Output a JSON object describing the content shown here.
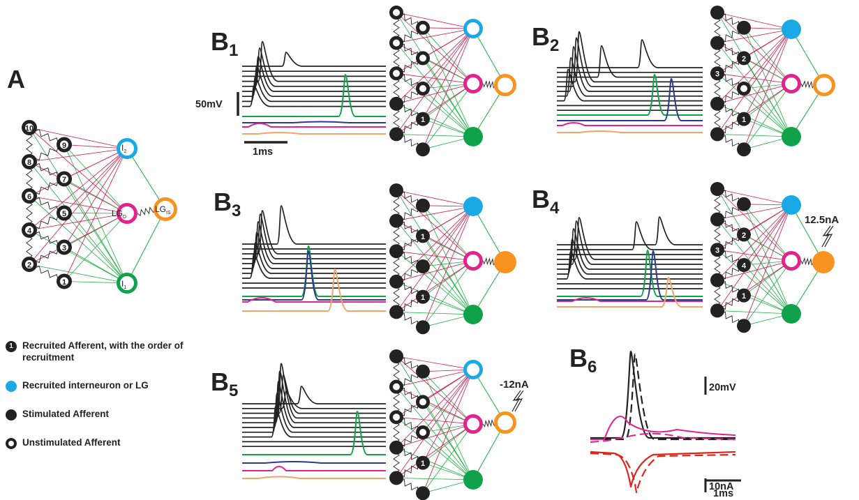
{
  "panels": {
    "A": {
      "label": "A"
    },
    "B1": {
      "label": "B",
      "sub": "1"
    },
    "B2": {
      "label": "B",
      "sub": "2"
    },
    "B3": {
      "label": "B",
      "sub": "3"
    },
    "B4": {
      "label": "B",
      "sub": "4"
    },
    "B5": {
      "label": "B",
      "sub": "5"
    },
    "B6": {
      "label": "B",
      "sub": "6"
    }
  },
  "network_A": {
    "afferents": [
      "10",
      "9",
      "8",
      "7",
      "6",
      "5",
      "4",
      "3",
      "2",
      "1"
    ],
    "nodes": {
      "i2": "I",
      "i2_sub": "2",
      "lgd": "LG",
      "lgd_sub": "D",
      "lgis": "LG",
      "lgis_sub": "IS",
      "i1": "I",
      "i1_sub": "1"
    }
  },
  "scalebars": {
    "b1_voltage": "50mV",
    "b1_time": "1ms",
    "b6_voltage": "20mV",
    "b6_current": "10nA",
    "b6_time": "1ms"
  },
  "injections": {
    "b4": "12.5nA",
    "b5": "-12nA"
  },
  "order_numbers": {
    "b1": [
      "1"
    ],
    "b2": [
      "2",
      "3",
      "1"
    ],
    "b3": [
      "1",
      "1"
    ],
    "b4": [
      "2",
      "3",
      "4",
      "1"
    ],
    "b5": [
      "1"
    ]
  },
  "legend": {
    "recruited_afferent_num": "1",
    "recruited_afferent": "Recruited Afferent, with the order of recruitment",
    "recruited_interneuron": "Recruited interneuron or LG",
    "stimulated": "Stimulated Afferent",
    "unstimulated": "Unstimulated Afferent"
  },
  "colors": {
    "black": "#222222",
    "cyan": "#19a9e5",
    "magenta": "#e0248b",
    "orange": "#f7931e",
    "green": "#0fa24a",
    "blue": "#2b3990",
    "peach": "#f4a46a",
    "red": "#e2231a",
    "edge_red": "#d61f54",
    "edge_green": "#27b24a"
  }
}
